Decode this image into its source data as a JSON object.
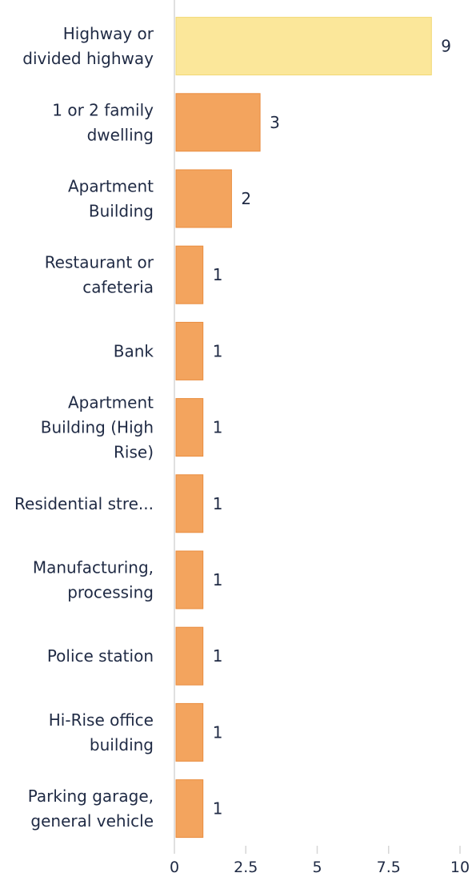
{
  "chart_data": {
    "type": "bar",
    "orientation": "horizontal",
    "categories": [
      [
        "Highway or",
        "divided highway"
      ],
      [
        "1 or 2 family",
        "dwelling"
      ],
      [
        "Apartment",
        "Building"
      ],
      [
        "Restaurant or",
        "cafeteria"
      ],
      [
        "Bank"
      ],
      [
        "Apartment",
        "Building (High",
        "Rise)"
      ],
      [
        "Residential stre..."
      ],
      [
        "Manufacturing,",
        "processing"
      ],
      [
        "Police station"
      ],
      [
        "Hi-Rise office",
        "building"
      ],
      [
        "Parking garage,",
        "general vehicle"
      ]
    ],
    "values": [
      9,
      3,
      2,
      1,
      1,
      1,
      1,
      1,
      1,
      1,
      1
    ],
    "xticks": [
      "0",
      "2.5",
      "5",
      "7.5",
      "10"
    ],
    "xlim": [
      0,
      10
    ],
    "title": "",
    "xlabel": "",
    "ylabel": "",
    "grid": false,
    "legend": "none",
    "colors": {
      "highlight": "#fbe79a",
      "highlight_stroke": "#f2d873",
      "bar": "#f3a45e",
      "bar_stroke": "#e98d3f",
      "axis": "#d6d6d6",
      "text": "#1f2a44"
    }
  }
}
